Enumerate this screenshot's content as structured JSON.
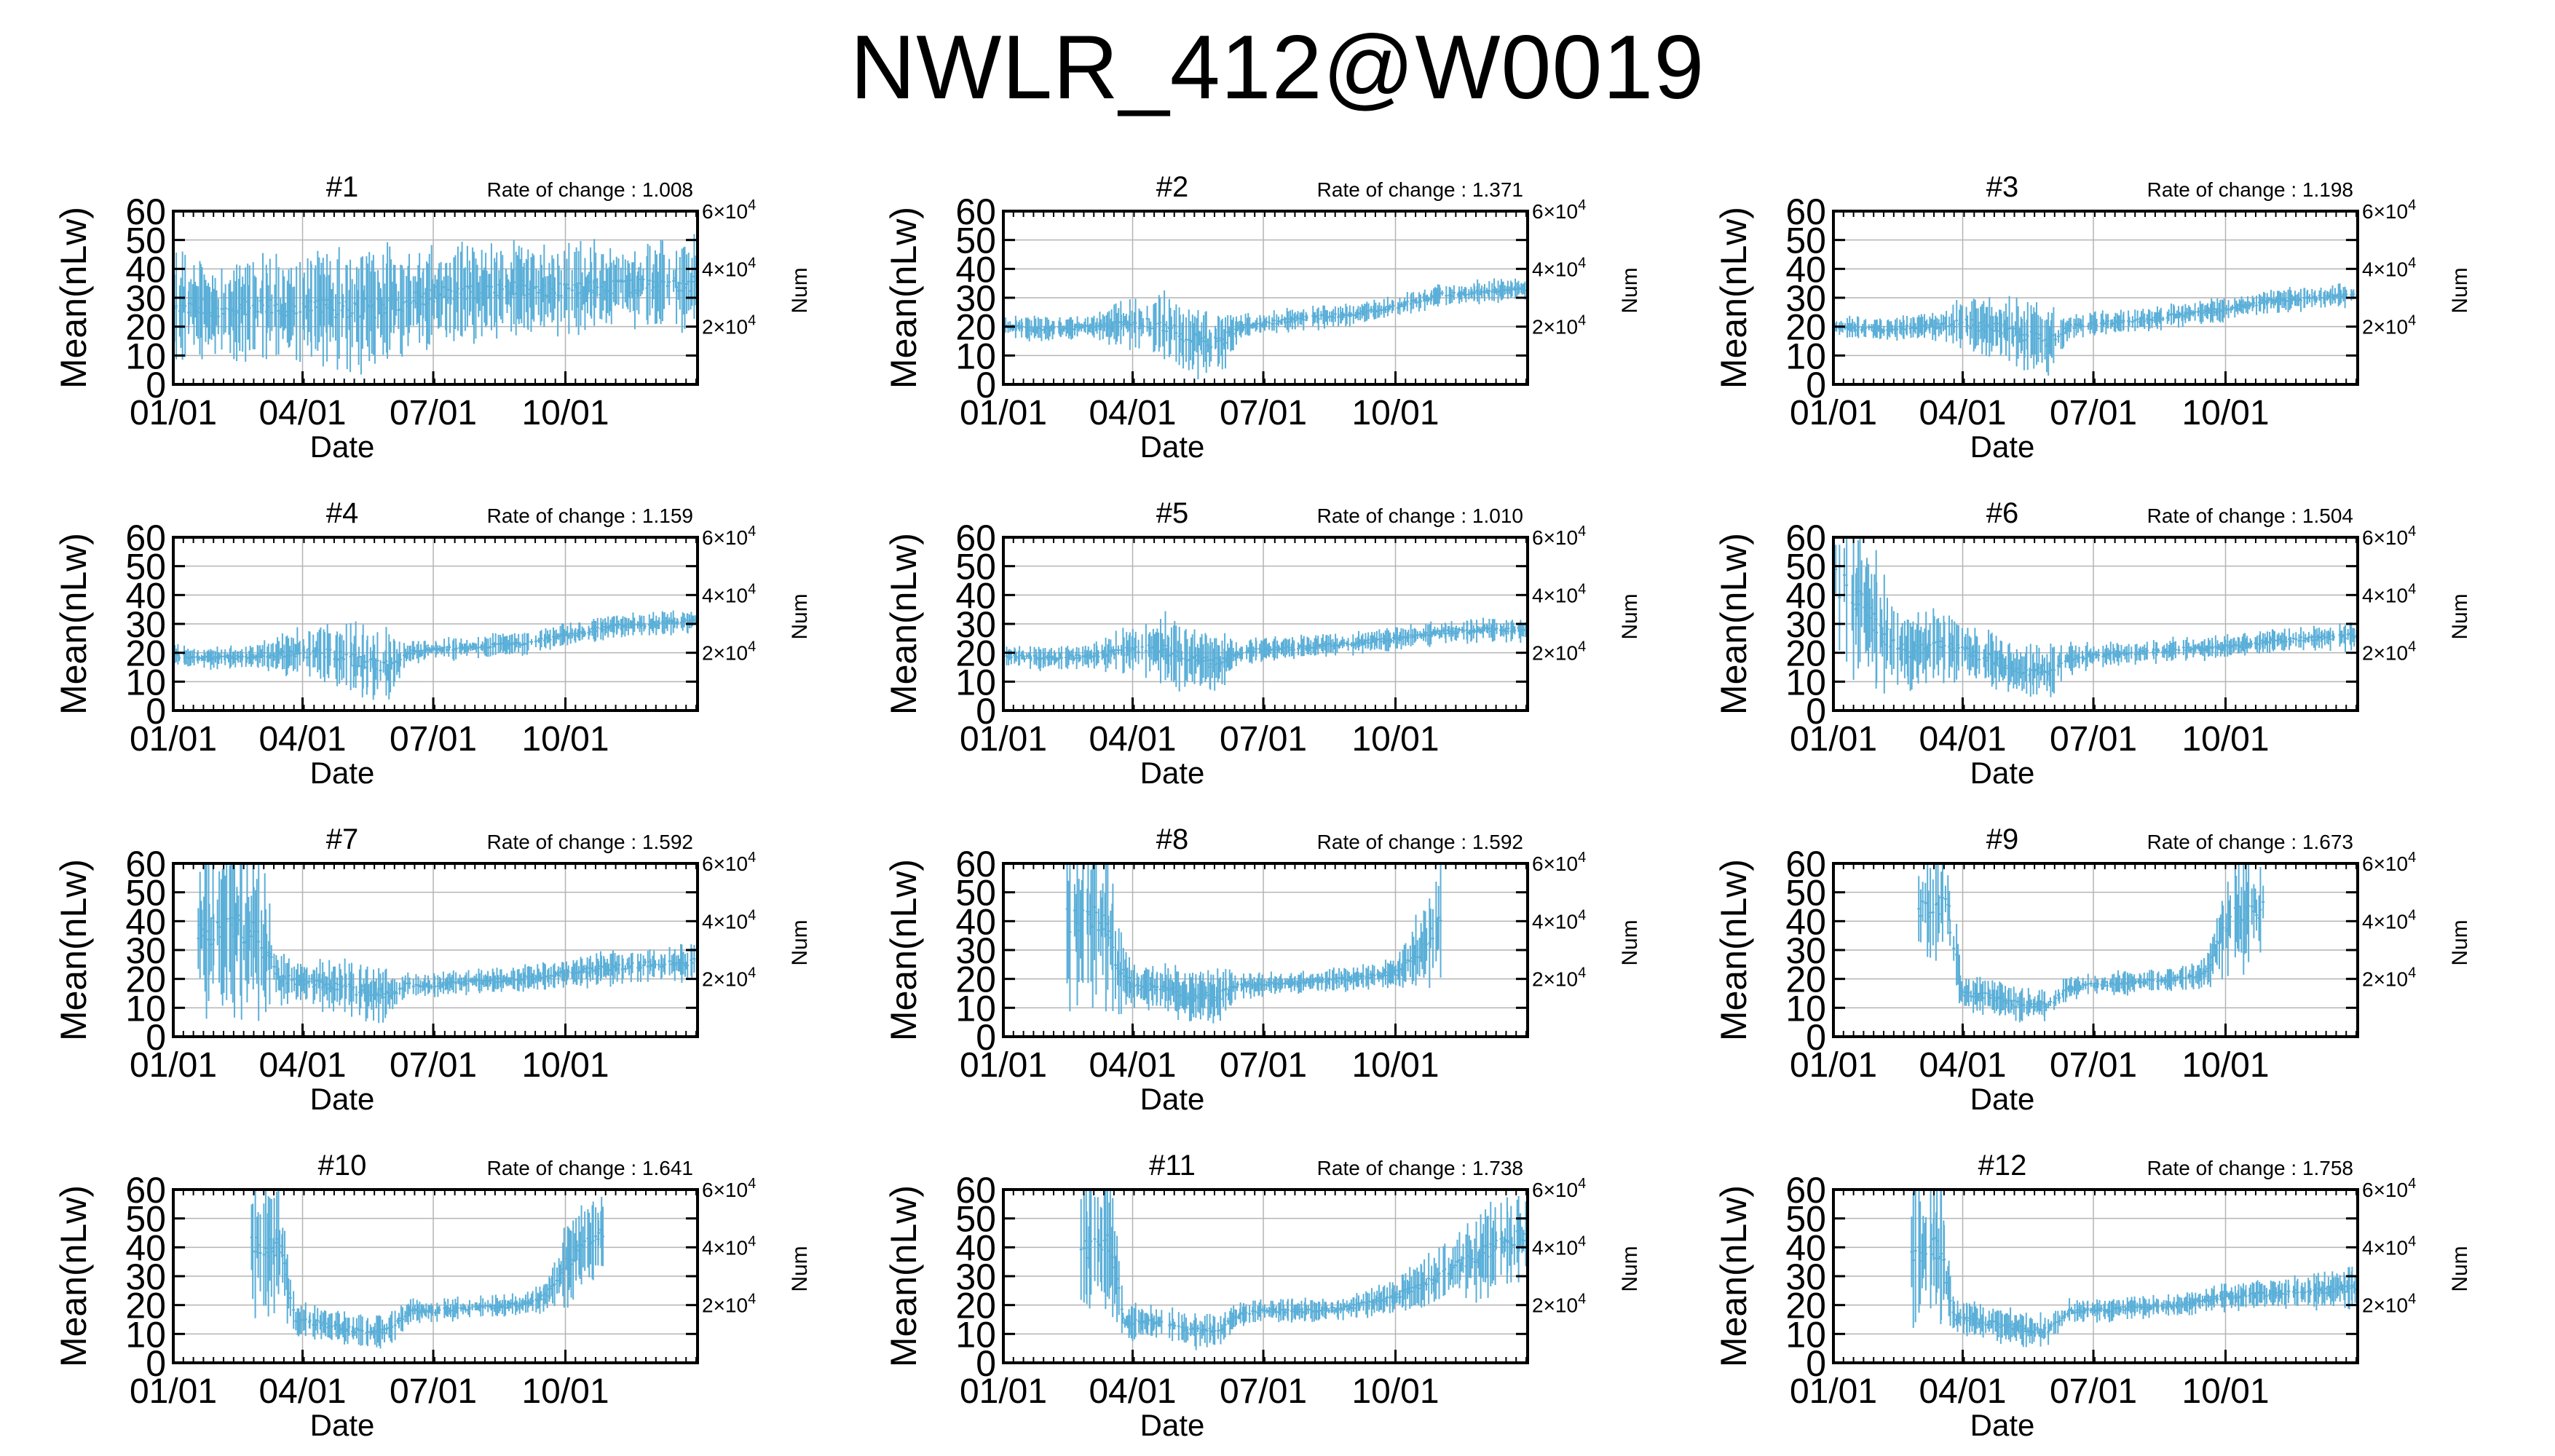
{
  "page": {
    "title": "NWLR_412@W0019"
  },
  "style": {
    "series_color": "#5AAFD8",
    "grid_color": "#b4b4b4",
    "axis_color": "#000000"
  },
  "common": {
    "xlabel": "Date",
    "ylabel": "Mean(nLw)",
    "y2label": "Num",
    "rate_prefix": "Rate of change : ",
    "xticks": [
      {
        "day": 1,
        "label": "01/01"
      },
      {
        "day": 91,
        "label": "04/01"
      },
      {
        "day": 182,
        "label": "07/01"
      },
      {
        "day": 274,
        "label": "10/01"
      }
    ],
    "yticks": [
      "0",
      "10",
      "20",
      "30",
      "40",
      "50",
      "60"
    ],
    "y2ticks": [
      {
        "value": 20000,
        "base": "2×10",
        "exp": "4"
      },
      {
        "value": 40000,
        "base": "4×10",
        "exp": "4"
      },
      {
        "value": 60000,
        "base": "6×10",
        "exp": "4"
      }
    ],
    "xlim_days": [
      1,
      366
    ],
    "ylim": [
      0,
      60
    ],
    "y2lim": [
      0,
      60000
    ]
  },
  "chart_data": [
    {
      "type": "line",
      "title": "#1",
      "rate": "1.008",
      "profile": [
        [
          1,
          27,
          20
        ],
        [
          30,
          26,
          18
        ],
        [
          60,
          27,
          18
        ],
        [
          90,
          27,
          19
        ],
        [
          120,
          26,
          20
        ],
        [
          150,
          27,
          21
        ],
        [
          182,
          31,
          18
        ],
        [
          210,
          32,
          16
        ],
        [
          240,
          33,
          16
        ],
        [
          274,
          33,
          16
        ],
        [
          305,
          34,
          15
        ],
        [
          335,
          34,
          15
        ],
        [
          366,
          35,
          15
        ]
      ],
      "gaps": []
    },
    {
      "type": "line",
      "title": "#2",
      "rate": "1.371",
      "profile": [
        [
          1,
          20,
          4
        ],
        [
          30,
          19,
          4
        ],
        [
          60,
          20,
          4
        ],
        [
          90,
          21,
          9
        ],
        [
          110,
          21,
          12
        ],
        [
          130,
          16,
          12
        ],
        [
          150,
          14,
          12
        ],
        [
          165,
          20,
          4
        ],
        [
          182,
          21,
          4
        ],
        [
          210,
          23,
          4
        ],
        [
          240,
          24,
          4
        ],
        [
          274,
          27,
          4
        ],
        [
          305,
          31,
          4
        ],
        [
          335,
          32,
          4
        ],
        [
          366,
          33,
          4
        ]
      ],
      "gaps": []
    },
    {
      "type": "line",
      "title": "#3",
      "rate": "1.198",
      "profile": [
        [
          1,
          20,
          4
        ],
        [
          30,
          19,
          4
        ],
        [
          60,
          20,
          4
        ],
        [
          90,
          21,
          9
        ],
        [
          110,
          20,
          12
        ],
        [
          130,
          17,
          12
        ],
        [
          150,
          15,
          12
        ],
        [
          165,
          20,
          4
        ],
        [
          182,
          21,
          4
        ],
        [
          210,
          22,
          4
        ],
        [
          240,
          24,
          4
        ],
        [
          274,
          26,
          4
        ],
        [
          305,
          29,
          4
        ],
        [
          335,
          30,
          4
        ],
        [
          366,
          31,
          4
        ]
      ],
      "gaps": []
    },
    {
      "type": "line",
      "title": "#4",
      "rate": "1.159",
      "profile": [
        [
          1,
          19,
          4
        ],
        [
          30,
          18,
          4
        ],
        [
          60,
          19,
          4
        ],
        [
          90,
          20,
          9
        ],
        [
          110,
          20,
          12
        ],
        [
          130,
          17,
          12
        ],
        [
          150,
          15,
          12
        ],
        [
          165,
          20,
          4
        ],
        [
          182,
          21,
          4
        ],
        [
          210,
          22,
          4
        ],
        [
          240,
          23,
          4
        ],
        [
          274,
          26,
          4
        ],
        [
          305,
          29,
          4
        ],
        [
          335,
          30,
          4
        ],
        [
          366,
          31,
          4
        ]
      ],
      "gaps": []
    },
    {
      "type": "line",
      "title": "#5",
      "rate": "1.010",
      "profile": [
        [
          1,
          19,
          4
        ],
        [
          30,
          18,
          4
        ],
        [
          60,
          19,
          4
        ],
        [
          90,
          21,
          9
        ],
        [
          110,
          21,
          12
        ],
        [
          130,
          18,
          12
        ],
        [
          150,
          16,
          12
        ],
        [
          165,
          20,
          4
        ],
        [
          182,
          21,
          4
        ],
        [
          210,
          22,
          4
        ],
        [
          240,
          23,
          4
        ],
        [
          274,
          25,
          4
        ],
        [
          305,
          27,
          4
        ],
        [
          335,
          28,
          4
        ],
        [
          366,
          28,
          4
        ]
      ],
      "gaps": []
    },
    {
      "type": "line",
      "title": "#6",
      "rate": "1.504",
      "profile": [
        [
          1,
          45,
          30
        ],
        [
          15,
          40,
          30
        ],
        [
          30,
          30,
          25
        ],
        [
          50,
          20,
          14
        ],
        [
          75,
          22,
          12
        ],
        [
          90,
          21,
          10
        ],
        [
          110,
          18,
          10
        ],
        [
          130,
          14,
          10
        ],
        [
          150,
          14,
          10
        ],
        [
          165,
          18,
          6
        ],
        [
          182,
          19,
          4
        ],
        [
          210,
          20,
          4
        ],
        [
          240,
          21,
          4
        ],
        [
          274,
          22,
          4
        ],
        [
          305,
          24,
          4
        ],
        [
          335,
          25,
          4
        ],
        [
          366,
          26,
          5
        ]
      ],
      "gaps": []
    },
    {
      "type": "line",
      "title": "#7",
      "rate": "1.592",
      "profile": [
        [
          18,
          35,
          30
        ],
        [
          40,
          40,
          30
        ],
        [
          60,
          35,
          30
        ],
        [
          75,
          20,
          10
        ],
        [
          90,
          19,
          8
        ],
        [
          110,
          18,
          9
        ],
        [
          130,
          16,
          10
        ],
        [
          150,
          15,
          10
        ],
        [
          165,
          18,
          5
        ],
        [
          182,
          18,
          4
        ],
        [
          210,
          19,
          4
        ],
        [
          240,
          20,
          4
        ],
        [
          274,
          22,
          5
        ],
        [
          305,
          24,
          6
        ],
        [
          335,
          25,
          6
        ],
        [
          366,
          26,
          7
        ]
      ],
      "gaps": []
    },
    {
      "type": "line",
      "title": "#8",
      "rate": "1.592",
      "profile": [
        [
          45,
          40,
          30
        ],
        [
          70,
          40,
          30
        ],
        [
          80,
          25,
          20
        ],
        [
          90,
          18,
          8
        ],
        [
          110,
          17,
          8
        ],
        [
          130,
          14,
          9
        ],
        [
          150,
          14,
          9
        ],
        [
          165,
          18,
          5
        ],
        [
          182,
          18,
          4
        ],
        [
          210,
          19,
          4
        ],
        [
          240,
          20,
          4
        ],
        [
          274,
          22,
          5
        ],
        [
          290,
          30,
          15
        ],
        [
          305,
          40,
          20
        ]
      ],
      "gaps": [
        [
          5,
          44
        ],
        [
          306,
          366
        ]
      ]
    },
    {
      "type": "line",
      "title": "#9",
      "rate": "1.673",
      "profile": [
        [
          60,
          45,
          20
        ],
        [
          80,
          45,
          20
        ],
        [
          90,
          15,
          6
        ],
        [
          110,
          14,
          6
        ],
        [
          130,
          11,
          6
        ],
        [
          150,
          11,
          6
        ],
        [
          165,
          17,
          4
        ],
        [
          182,
          18,
          4
        ],
        [
          210,
          19,
          4
        ],
        [
          240,
          20,
          4
        ],
        [
          260,
          22,
          5
        ],
        [
          274,
          40,
          20
        ],
        [
          300,
          45,
          20
        ]
      ],
      "gaps": [
        [
          5,
          59
        ],
        [
          301,
          366
        ]
      ]
    },
    {
      "type": "line",
      "title": "#10",
      "rate": "1.641",
      "profile": [
        [
          55,
          40,
          25
        ],
        [
          75,
          40,
          20
        ],
        [
          85,
          15,
          6
        ],
        [
          110,
          13,
          6
        ],
        [
          130,
          11,
          6
        ],
        [
          150,
          11,
          6
        ],
        [
          165,
          18,
          4
        ],
        [
          182,
          18,
          4
        ],
        [
          210,
          19,
          4
        ],
        [
          240,
          20,
          4
        ],
        [
          260,
          23,
          5
        ],
        [
          274,
          35,
          15
        ],
        [
          300,
          45,
          15
        ]
      ],
      "gaps": [
        [
          5,
          54
        ],
        [
          301,
          366
        ]
      ]
    },
    {
      "type": "line",
      "title": "#11",
      "rate": "1.738",
      "profile": [
        [
          55,
          40,
          20
        ],
        [
          75,
          40,
          25
        ],
        [
          85,
          14,
          6
        ],
        [
          110,
          14,
          6
        ],
        [
          130,
          11,
          6
        ],
        [
          150,
          11,
          6
        ],
        [
          165,
          17,
          4
        ],
        [
          182,
          18,
          4
        ],
        [
          210,
          18,
          4
        ],
        [
          240,
          19,
          4
        ],
        [
          274,
          23,
          6
        ],
        [
          305,
          30,
          10
        ],
        [
          335,
          38,
          15
        ],
        [
          366,
          45,
          15
        ]
      ],
      "gaps": [
        [
          5,
          54
        ]
      ]
    },
    {
      "type": "line",
      "title": "#12",
      "rate": "1.758",
      "profile": [
        [
          55,
          35,
          25
        ],
        [
          75,
          40,
          25
        ],
        [
          85,
          16,
          6
        ],
        [
          110,
          14,
          6
        ],
        [
          130,
          12,
          6
        ],
        [
          150,
          11,
          6
        ],
        [
          165,
          18,
          4
        ],
        [
          182,
          18,
          4
        ],
        [
          210,
          19,
          4
        ],
        [
          240,
          20,
          4
        ],
        [
          274,
          23,
          5
        ],
        [
          305,
          24,
          5
        ],
        [
          335,
          25,
          6
        ],
        [
          366,
          26,
          8
        ]
      ],
      "gaps": [
        [
          5,
          54
        ]
      ]
    }
  ]
}
